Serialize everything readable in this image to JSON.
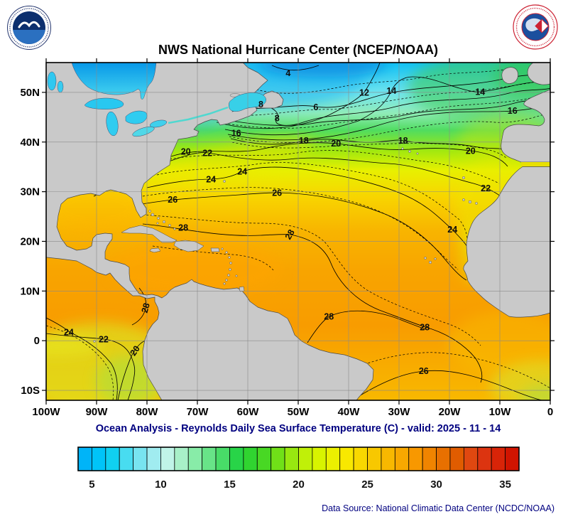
{
  "header": {
    "title": "NWS National Hurricane Center (NCEP/NOAA)",
    "noaa_logo_icon": "noaa-logo",
    "nws_logo_icon": "nws-logo"
  },
  "caption": "Ocean Analysis - Reynolds Daily Sea Surface Temperature (C) - valid: 2025 - 11 - 14",
  "footer": {
    "source": "Data Source: National Climatic Data Center (NCDC/NOAA)"
  },
  "chart_data": {
    "type": "heatmap",
    "title": "NWS National Hurricane Center (NCEP/NOAA)",
    "subtitle": "Ocean Analysis - Reynolds Daily Sea Surface Temperature (C) - valid: 2025 - 11 - 14",
    "valid_date": "2025 - 11 - 14",
    "units": "C",
    "lon_range": [
      -100,
      0
    ],
    "lat_range": [
      -12,
      56
    ],
    "grid": true,
    "x_axis": {
      "ticks": [
        {
          "label": "100W",
          "lon": -100
        },
        {
          "label": "90W",
          "lon": -90
        },
        {
          "label": "80W",
          "lon": -80
        },
        {
          "label": "70W",
          "lon": -70
        },
        {
          "label": "60W",
          "lon": -60
        },
        {
          "label": "50W",
          "lon": -50
        },
        {
          "label": "40W",
          "lon": -40
        },
        {
          "label": "30W",
          "lon": -30
        },
        {
          "label": "20W",
          "lon": -20
        },
        {
          "label": "10W",
          "lon": -10
        },
        {
          "label": "0",
          "lon": 0
        }
      ]
    },
    "y_axis": {
      "ticks": [
        {
          "label": "50N",
          "lat": 50
        },
        {
          "label": "40N",
          "lat": 40
        },
        {
          "label": "30N",
          "lat": 30
        },
        {
          "label": "20N",
          "lat": 20
        },
        {
          "label": "10N",
          "lat": 10
        },
        {
          "label": "0",
          "lat": 0
        },
        {
          "label": "10S",
          "lat": -10
        }
      ]
    },
    "contour_interval": "2C solid, intermediate dashed",
    "contour_labels": [
      {
        "v": "4",
        "lon": -52.0,
        "lat": 53.9
      },
      {
        "v": "6",
        "lon": -46.5,
        "lat": 47.0
      },
      {
        "v": "8",
        "lon": -57.4,
        "lat": 47.6
      },
      {
        "v": "8",
        "lon": -54.2,
        "lat": 44.8
      },
      {
        "v": "12",
        "lon": -36.9,
        "lat": 50.0
      },
      {
        "v": "14",
        "lon": -31.5,
        "lat": 50.3
      },
      {
        "v": "14",
        "lon": -13.9,
        "lat": 50.1
      },
      {
        "v": "16",
        "lon": -7.5,
        "lat": 46.3
      },
      {
        "v": "16",
        "lon": -62.3,
        "lat": 41.8
      },
      {
        "v": "18",
        "lon": -48.9,
        "lat": 40.3
      },
      {
        "v": "18",
        "lon": -29.2,
        "lat": 40.3
      },
      {
        "v": "20",
        "lon": -72.3,
        "lat": 38.1
      },
      {
        "v": "20",
        "lon": -42.5,
        "lat": 39.7
      },
      {
        "v": "20",
        "lon": -15.8,
        "lat": 38.2
      },
      {
        "v": "22",
        "lon": -68.0,
        "lat": 37.8
      },
      {
        "v": "22",
        "lon": -12.8,
        "lat": 30.7
      },
      {
        "v": "24",
        "lon": -67.3,
        "lat": 32.5
      },
      {
        "v": "24",
        "lon": -61.1,
        "lat": 34.1
      },
      {
        "v": "24",
        "lon": -19.4,
        "lat": 22.4
      },
      {
        "v": "26",
        "lon": -74.9,
        "lat": 28.4
      },
      {
        "v": "26",
        "lon": -54.2,
        "lat": 29.8
      },
      {
        "v": "28",
        "lon": -72.8,
        "lat": 22.8
      },
      {
        "v": "28",
        "lon": -51.7,
        "lat": 21.4,
        "rot": -60
      },
      {
        "v": "28",
        "lon": -80.3,
        "lat": 6.6,
        "rot": -75
      },
      {
        "v": "28",
        "lon": -43.9,
        "lat": 4.9
      },
      {
        "v": "28",
        "lon": -24.9,
        "lat": 2.7
      },
      {
        "v": "26",
        "lon": -25.1,
        "lat": -6.1
      },
      {
        "v": "24",
        "lon": -95.5,
        "lat": 1.7
      },
      {
        "v": "22",
        "lon": -88.6,
        "lat": 0.3
      },
      {
        "v": "20",
        "lon": -82.4,
        "lat": -2.0,
        "rot": -55
      }
    ],
    "colorbar": {
      "range": [
        4,
        36
      ],
      "ticks": [
        5,
        10,
        15,
        20,
        25,
        30,
        35
      ],
      "colors": [
        "#00b4f8",
        "#00c4f8",
        "#10d0f0",
        "#48dcf0",
        "#78e4f0",
        "#a0ecf0",
        "#c0f4e8",
        "#a8f0c8",
        "#88eca8",
        "#68e488",
        "#48dc68",
        "#28d448",
        "#30d430",
        "#48d824",
        "#70e018",
        "#98e810",
        "#c0f008",
        "#d8f400",
        "#ecf000",
        "#f8e800",
        "#f8d800",
        "#f8c800",
        "#f8b800",
        "#f8a800",
        "#f89800",
        "#f08400",
        "#e87000",
        "#e05c00",
        "#e04810",
        "#dc3410",
        "#d82408",
        "#d01400"
      ]
    }
  }
}
